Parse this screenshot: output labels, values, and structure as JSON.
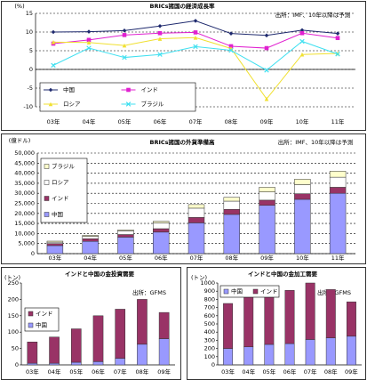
{
  "chart_data": [
    {
      "type": "line",
      "title": "BRICs諸国の経済成長率",
      "ylabel": "(%)",
      "source": "出所：IMF、10年以降は予測",
      "categories": [
        "03年",
        "04年",
        "05年",
        "06年",
        "07年",
        "08年",
        "09年",
        "10年",
        "11年"
      ],
      "ylim": [
        -10,
        15
      ],
      "yticks": [
        -10,
        -5,
        0,
        5,
        10,
        15
      ],
      "grid": true,
      "legend": "lower left",
      "series": [
        {
          "name": "中国",
          "color": "#1f2a6e",
          "marker": "diamond",
          "values": [
            10,
            10.1,
            10.4,
            11.6,
            13,
            9.6,
            9.1,
            10.5,
            9.6
          ]
        },
        {
          "name": "インド",
          "color": "#e020d0",
          "marker": "square",
          "values": [
            6.9,
            7.9,
            9.2,
            9.7,
            9.9,
            6.2,
            5.7,
            9.7,
            8.4
          ]
        },
        {
          "name": "ロシア",
          "color": "#f0e030",
          "marker": "triangle",
          "values": [
            7.3,
            7.2,
            6.4,
            8.2,
            8.5,
            5.6,
            -7.9,
            4.0,
            4.3
          ]
        },
        {
          "name": "ブラジル",
          "color": "#40e0f0",
          "marker": "x",
          "values": [
            1.1,
            5.7,
            3.2,
            4.0,
            6.1,
            5.1,
            -0.2,
            7.5,
            4.1
          ]
        }
      ]
    },
    {
      "type": "bar",
      "stacked": true,
      "title": "BRICs諸国の外貨準備高",
      "ylabel": "(億ドル)",
      "source": "出所：IMF、10年以降は予測",
      "categories": [
        "03年",
        "04年",
        "05年",
        "06年",
        "07年",
        "08年",
        "09年",
        "10年",
        "11年"
      ],
      "ylim": [
        0,
        50000
      ],
      "yticks": [
        0,
        {
          "value": 5000,
          "label": "5,000"
        },
        {
          "value": 10000,
          "label": "10,000"
        },
        {
          "value": 15000,
          "label": "15,000"
        },
        {
          "value": 20000,
          "label": "20,000"
        },
        {
          "value": 25000,
          "label": "25,000"
        },
        {
          "value": 30000,
          "label": "30,000"
        },
        {
          "value": 35000,
          "label": "35,000"
        },
        {
          "value": 40000,
          "label": "40,000"
        },
        {
          "value": 45000,
          "label": "45,000"
        },
        {
          "value": 50000,
          "label": "50,000"
        }
      ],
      "grid": true,
      "legend": "upper left",
      "series": [
        {
          "name": "中国",
          "color": "#9999ff",
          "values": [
            4000,
            6100,
            8200,
            10700,
            15300,
            19500,
            24000,
            27000,
            30000
          ]
        },
        {
          "name": "インド",
          "color": "#993366",
          "values": [
            1000,
            1300,
            1300,
            1700,
            2700,
            2500,
            2600,
            2800,
            3000
          ]
        },
        {
          "name": "ロシア",
          "color": "#ffffff",
          "values": [
            700,
            1200,
            1800,
            2900,
            4600,
            4100,
            4100,
            4500,
            5000
          ]
        },
        {
          "name": "ブラジル",
          "color": "#ffffcc",
          "values": [
            500,
            500,
            500,
            800,
            1800,
            1900,
            2300,
            2700,
            3000
          ]
        }
      ]
    },
    {
      "type": "bar",
      "stacked": true,
      "title": "インドと中国の金投資需要",
      "ylabel": "(トン)",
      "source": "出所：GFMS",
      "categories": [
        "03年",
        "04年",
        "05年",
        "06年",
        "07年",
        "08年",
        "09年"
      ],
      "ylim": [
        0,
        250
      ],
      "yticks": [
        0,
        50,
        100,
        150,
        200,
        250
      ],
      "grid": false,
      "legend": "upper left",
      "series": [
        {
          "name": "中国",
          "color": "#9999ff",
          "values": [
            5,
            5,
            8,
            10,
            20,
            63,
            80
          ]
        },
        {
          "name": "インド",
          "color": "#993366",
          "values": [
            65,
            80,
            102,
            140,
            150,
            137,
            80
          ]
        }
      ]
    },
    {
      "type": "bar",
      "stacked": true,
      "title": "インドと中国の金加工需要",
      "ylabel": "(トン)",
      "source": "出所：GFMS",
      "categories": [
        "03年",
        "04年",
        "05年",
        "06年",
        "07年",
        "08年",
        "09年"
      ],
      "ylim": [
        0,
        1000
      ],
      "yticks": [
        0,
        100,
        200,
        300,
        400,
        500,
        600,
        700,
        800,
        900,
        1000
      ],
      "grid": false,
      "legend": "upper left",
      "series": [
        {
          "name": "中国",
          "color": "#9999ff",
          "values": [
            200,
            220,
            250,
            260,
            310,
            330,
            350
          ]
        },
        {
          "name": "インド",
          "color": "#993366",
          "values": [
            550,
            640,
            710,
            650,
            690,
            590,
            420
          ]
        }
      ]
    }
  ]
}
